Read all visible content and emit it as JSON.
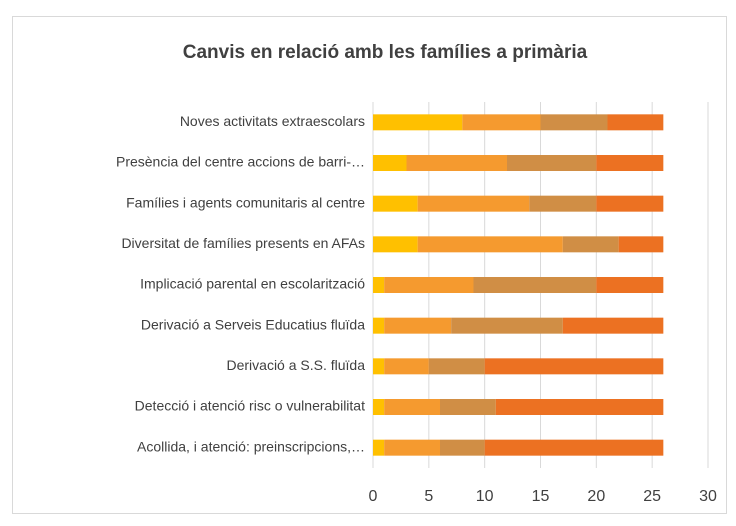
{
  "chart_data": {
    "type": "stacked-bar-horizontal",
    "title": "Canvis en relació amb les famílies a primària",
    "categories": [
      "Noves activitats extraescolars",
      "Presència del centre accions de barri-…",
      "Famílies i agents comunitaris al centre",
      "Diversitat de famílies presents en AFAs",
      "Implicació parental en escolarització",
      "Derivació a Serveis Educatius fluïda",
      "Derivació a S.S. fluïda",
      "Detecció i atenció risc o vulnerabilitat",
      "Acollida, i atenció: preinscripcions,…"
    ],
    "series": [
      {
        "color": "#ffc000",
        "values": [
          8,
          3,
          4,
          4,
          1,
          1,
          1,
          1,
          1
        ]
      },
      {
        "color": "#f59a2f",
        "values": [
          7,
          9,
          10,
          13,
          8,
          6,
          4,
          5,
          5
        ]
      },
      {
        "color": "#d08e45",
        "values": [
          6,
          8,
          6,
          5,
          11,
          10,
          5,
          5,
          4
        ]
      },
      {
        "color": "#ec7122",
        "values": [
          5,
          6,
          6,
          4,
          6,
          9,
          16,
          15,
          16
        ]
      }
    ],
    "xlim": [
      0,
      30
    ],
    "xticks": [
      0,
      5,
      10,
      15,
      20,
      25,
      30
    ],
    "grid": true
  }
}
